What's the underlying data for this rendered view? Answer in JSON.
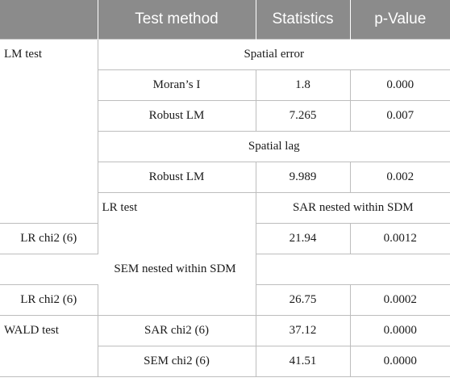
{
  "table": {
    "headers": [
      "",
      "Test method",
      "Statistics",
      "p-Value"
    ],
    "groups": {
      "lm": "LM test",
      "lr": "LR test",
      "wald": "WALD test"
    },
    "sections": {
      "spatial_error": "Spatial error",
      "spatial_lag": "Spatial lag",
      "sar_nested": "SAR nested within SDM",
      "sem_nested": "SEM nested within SDM"
    },
    "rows": {
      "morans_i": [
        "Moran’s I",
        "1.8",
        "0.000"
      ],
      "robust_lm_error": [
        "Robust LM",
        "7.265",
        "0.007"
      ],
      "robust_lm_lag": [
        "Robust LM",
        "9.989",
        "0.002"
      ],
      "lr_chi2_sar": [
        "LR chi2 (6)",
        "21.94",
        "0.0012"
      ],
      "lr_chi2_sem": [
        "LR chi2 (6)",
        "26.75",
        "0.0002"
      ],
      "sar_chi2": [
        "SAR chi2 (6)",
        "37.12",
        "0.0000"
      ],
      "sem_chi2": [
        "SEM chi2 (6)",
        "41.51",
        "0.0000"
      ]
    }
  }
}
